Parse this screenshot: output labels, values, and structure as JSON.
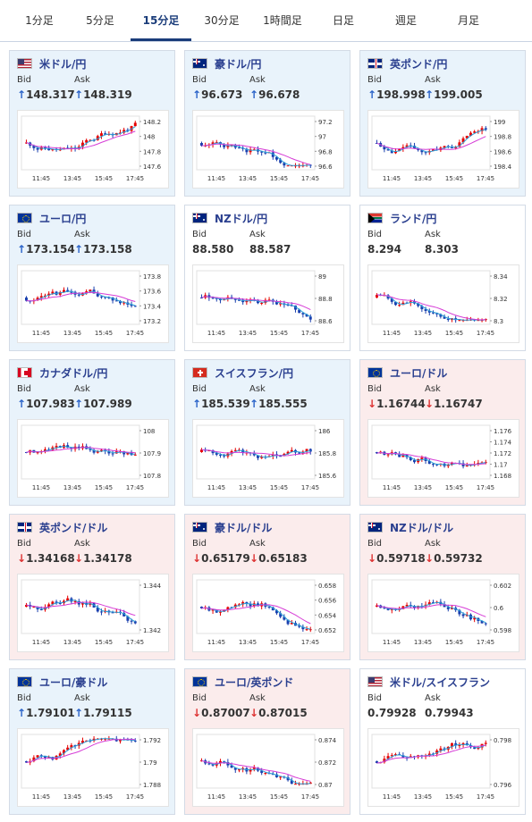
{
  "tabs": [
    "1分足",
    "5分足",
    "15分足",
    "30分足",
    "1時間足",
    "日足",
    "週足",
    "月足"
  ],
  "active_tab": 2,
  "labels": {
    "bid": "Bid",
    "ask": "Ask"
  },
  "x_ticks": [
    "11:45",
    "13:45",
    "15:45",
    "17:45"
  ],
  "cards": [
    {
      "title": "米ドル/円",
      "flag": "us-jp",
      "dir": "up",
      "bid": "148.317",
      "ask": "148.319",
      "ticks": [
        "148.2",
        "148",
        "147.8",
        "147.6"
      ],
      "trend": "updown_up"
    },
    {
      "title": "豪ドル/円",
      "flag": "au-jp",
      "dir": "up",
      "bid": "96.673",
      "ask": "96.678",
      "ticks": [
        "97.2",
        "97",
        "96.8",
        "96.6"
      ],
      "trend": "down"
    },
    {
      "title": "英ポンド/円",
      "flag": "gb-jp",
      "dir": "up",
      "bid": "198.998",
      "ask": "199.005",
      "ticks": [
        "199",
        "198.8",
        "198.6",
        "198.4"
      ],
      "trend": "updown_up"
    },
    {
      "title": "ユーロ/円",
      "flag": "eu-jp",
      "dir": "up",
      "bid": "173.154",
      "ask": "173.158",
      "ticks": [
        "173.8",
        "173.6",
        "173.4",
        "173.2"
      ],
      "trend": "down"
    },
    {
      "title": "NZドル/円",
      "flag": "nz-jp",
      "dir": "flat",
      "bid": "88.580",
      "ask": "88.587",
      "ticks": [
        "89",
        "88.8",
        "88.6"
      ],
      "trend": "down"
    },
    {
      "title": "ランド/円",
      "flag": "za-jp",
      "dir": "flat",
      "bid": "8.294",
      "ask": "8.303",
      "ticks": [
        "8.34",
        "8.32",
        "8.3"
      ],
      "trend": "down"
    },
    {
      "title": "カナダドル/円",
      "flag": "ca-jp",
      "dir": "up",
      "bid": "107.983",
      "ask": "107.989",
      "ticks": [
        "108",
        "107.9",
        "107.8"
      ],
      "trend": "choppy"
    },
    {
      "title": "スイスフラン/円",
      "flag": "ch-jp",
      "dir": "up",
      "bid": "185.539",
      "ask": "185.555",
      "ticks": [
        "186",
        "185.8",
        "185.6"
      ],
      "trend": "choppy_down"
    },
    {
      "title": "ユーロ/ドル",
      "flag": "eu-us",
      "dir": "down",
      "bid": "1.16744",
      "ask": "1.16747",
      "ticks": [
        "1.176",
        "1.174",
        "1.172",
        "1.17",
        "1.168"
      ],
      "trend": "down"
    },
    {
      "title": "英ポンド/ドル",
      "flag": "gb-us",
      "dir": "down",
      "bid": "1.34168",
      "ask": "1.34178",
      "ticks": [
        "1.344",
        "1.342"
      ],
      "trend": "down"
    },
    {
      "title": "豪ドル/ドル",
      "flag": "au-us",
      "dir": "down",
      "bid": "0.65179",
      "ask": "0.65183",
      "ticks": [
        "0.658",
        "0.656",
        "0.654",
        "0.652"
      ],
      "trend": "down"
    },
    {
      "title": "NZドル/ドル",
      "flag": "nz-us",
      "dir": "down",
      "bid": "0.59718",
      "ask": "0.59732",
      "ticks": [
        "0.602",
        "0.6",
        "0.598"
      ],
      "trend": "down"
    },
    {
      "title": "ユーロ/豪ドル",
      "flag": "eu-au",
      "dir": "up",
      "bid": "1.79101",
      "ask": "1.79115",
      "ticks": [
        "1.792",
        "1.79",
        "1.788"
      ],
      "trend": "up"
    },
    {
      "title": "ユーロ/英ポンド",
      "flag": "eu-gb",
      "dir": "down",
      "bid": "0.87007",
      "ask": "0.87015",
      "ticks": [
        "0.874",
        "0.872",
        "0.87"
      ],
      "trend": "down"
    },
    {
      "title": "米ドル/スイスフラン",
      "flag": "us-ch",
      "dir": "flat",
      "bid": "0.79928",
      "ask": "0.79943",
      "ticks": [
        "0.798",
        "0.796"
      ],
      "trend": "up"
    }
  ],
  "colors": {
    "up_candle": "#e60000",
    "down_candle": "#1a3fae",
    "ma_short": "#2aa0d8",
    "ma_long": "#d63cd6",
    "title": "#2a3f8f"
  }
}
